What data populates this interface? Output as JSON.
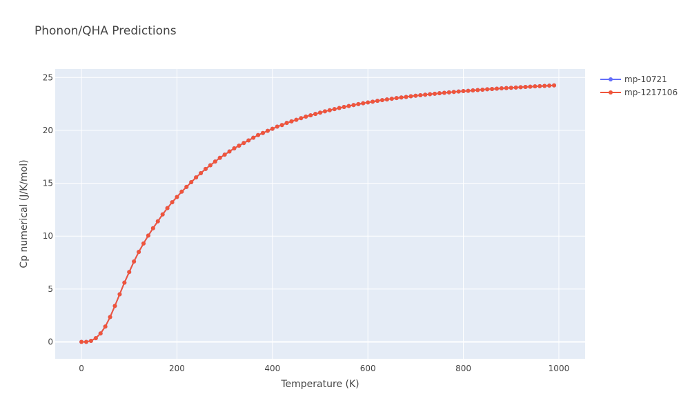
{
  "chart_data": {
    "type": "line",
    "title": "Phonon/QHA Predictions",
    "xlabel": "Temperature (K)",
    "ylabel": "Cp numerical (J/K/mol)",
    "xlim": [
      -55,
      1055
    ],
    "ylim": [
      -1.6,
      25.8
    ],
    "xticks": [
      0,
      200,
      400,
      600,
      800,
      1000
    ],
    "yticks": [
      0,
      5,
      10,
      15,
      20,
      25
    ],
    "grid": true,
    "legend_position": "top-right",
    "x": [
      0,
      10,
      20,
      30,
      40,
      50,
      60,
      70,
      80,
      90,
      100,
      110,
      120,
      130,
      140,
      150,
      160,
      170,
      180,
      190,
      200,
      210,
      220,
      230,
      240,
      250,
      260,
      270,
      280,
      290,
      300,
      310,
      320,
      330,
      340,
      350,
      360,
      370,
      380,
      390,
      400,
      410,
      420,
      430,
      440,
      450,
      460,
      470,
      480,
      490,
      500,
      510,
      520,
      530,
      540,
      550,
      560,
      570,
      580,
      590,
      600,
      610,
      620,
      630,
      640,
      650,
      660,
      670,
      680,
      690,
      700,
      710,
      720,
      730,
      740,
      750,
      760,
      770,
      780,
      790,
      800,
      810,
      820,
      830,
      840,
      850,
      860,
      870,
      880,
      890,
      900,
      910,
      920,
      930,
      940,
      950,
      960,
      970,
      980,
      990
    ],
    "series": [
      {
        "name": "mp-10721",
        "color": "#636efa",
        "values": [
          0,
          0,
          0.1,
          0.35,
          0.8,
          1.45,
          2.35,
          3.4,
          4.5,
          5.6,
          6.6,
          7.6,
          8.5,
          9.3,
          10.05,
          10.75,
          11.4,
          12.05,
          12.65,
          13.2,
          13.7,
          14.2,
          14.65,
          15.1,
          15.55,
          15.95,
          16.35,
          16.7,
          17.05,
          17.4,
          17.7,
          18.0,
          18.3,
          18.55,
          18.8,
          19.05,
          19.3,
          19.55,
          19.75,
          19.95,
          20.15,
          20.35,
          20.5,
          20.7,
          20.85,
          21.0,
          21.15,
          21.3,
          21.42,
          21.55,
          21.67,
          21.8,
          21.9,
          22.01,
          22.11,
          22.21,
          22.3,
          22.39,
          22.48,
          22.56,
          22.64,
          22.71,
          22.79,
          22.86,
          22.92,
          22.99,
          23.05,
          23.11,
          23.16,
          23.22,
          23.27,
          23.32,
          23.37,
          23.42,
          23.46,
          23.51,
          23.55,
          23.59,
          23.63,
          23.67,
          23.71,
          23.74,
          23.78,
          23.81,
          23.84,
          23.88,
          23.91,
          23.94,
          23.97,
          24.0,
          24.02,
          24.05,
          24.08,
          24.1,
          24.13,
          24.16,
          24.18,
          24.2,
          24.23,
          24.25
        ]
      },
      {
        "name": "mp-1217106",
        "color": "#ef553b",
        "values": [
          0,
          0,
          0.1,
          0.35,
          0.8,
          1.45,
          2.35,
          3.4,
          4.5,
          5.6,
          6.6,
          7.6,
          8.5,
          9.3,
          10.05,
          10.75,
          11.4,
          12.05,
          12.65,
          13.2,
          13.7,
          14.2,
          14.65,
          15.1,
          15.55,
          15.95,
          16.35,
          16.7,
          17.05,
          17.4,
          17.7,
          18.0,
          18.3,
          18.55,
          18.8,
          19.05,
          19.3,
          19.55,
          19.75,
          19.95,
          20.15,
          20.35,
          20.5,
          20.7,
          20.85,
          21.0,
          21.15,
          21.3,
          21.42,
          21.55,
          21.67,
          21.8,
          21.9,
          22.01,
          22.11,
          22.21,
          22.3,
          22.39,
          22.48,
          22.56,
          22.64,
          22.71,
          22.79,
          22.86,
          22.92,
          22.99,
          23.05,
          23.11,
          23.16,
          23.22,
          23.27,
          23.32,
          23.37,
          23.42,
          23.46,
          23.51,
          23.55,
          23.59,
          23.63,
          23.67,
          23.71,
          23.74,
          23.78,
          23.81,
          23.84,
          23.88,
          23.91,
          23.94,
          23.97,
          24.0,
          24.02,
          24.05,
          24.08,
          24.1,
          24.13,
          24.16,
          24.18,
          24.2,
          24.23,
          24.25
        ]
      }
    ]
  }
}
